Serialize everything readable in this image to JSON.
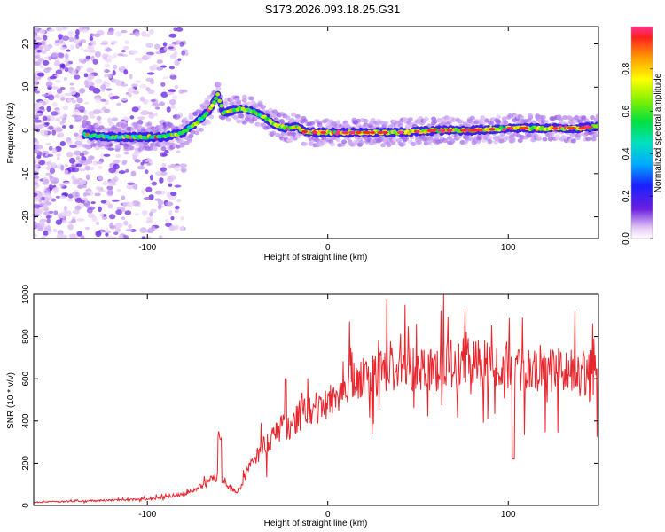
{
  "title": "S173.2026.093.18.25.G31",
  "chart_data": [
    {
      "type": "heatmap",
      "xlabel": "Height of straight line (km)",
      "ylabel": "Frequency (Hz)",
      "xlim": [
        -163,
        150
      ],
      "ylim": [
        -25,
        24
      ],
      "xticks": [
        -100,
        0,
        100
      ],
      "yticks": [
        -20,
        -10,
        0,
        10,
        20
      ],
      "colorbar": {
        "label": "Normalized spectral amplitude",
        "range": [
          0,
          1
        ],
        "ticks": [
          "0.0",
          "0.2",
          "0.4",
          "0.6",
          "0.8"
        ]
      },
      "ridge": {
        "x": [
          -135,
          -120,
          -100,
          -90,
          -80,
          -72,
          -65,
          -61,
          -58,
          -50,
          -42,
          -35,
          -28,
          -22,
          -18,
          -12,
          -5,
          0,
          20,
          40,
          60,
          80,
          100,
          120,
          140,
          150
        ],
        "y": [
          -1,
          -1.5,
          -1.5,
          -1.5,
          -0.5,
          2,
          5,
          8.5,
          4,
          5,
          4.5,
          3,
          1,
          0.5,
          1,
          -0.5,
          -0.5,
          -0.5,
          -0.5,
          -0.5,
          0,
          0,
          0.5,
          0.5,
          0.5,
          1
        ]
      },
      "grid": false
    },
    {
      "type": "line",
      "xlabel": "Height of straight line (km)",
      "ylabel": "SNR (10 * v/v)",
      "xlim": [
        -163,
        150
      ],
      "ylim": [
        0,
        1000
      ],
      "xticks": [
        -100,
        0,
        100
      ],
      "yticks": [
        0,
        200,
        400,
        600,
        800,
        1000
      ],
      "color": "#e8262d",
      "series": [
        {
          "x": [
            -163,
            -140,
            -120,
            -100,
            -90,
            -80,
            -70,
            -65,
            -60,
            -55,
            -50,
            -45,
            -40,
            -35,
            -30,
            -25,
            -20,
            -15,
            -10,
            -5,
            0,
            5,
            10,
            20,
            30,
            40,
            50,
            60,
            70,
            80,
            90,
            100,
            110,
            120,
            130,
            140,
            150
          ],
          "y": [
            15,
            20,
            25,
            30,
            40,
            55,
            90,
            120,
            140,
            90,
            60,
            150,
            230,
            290,
            330,
            360,
            390,
            420,
            440,
            460,
            490,
            530,
            560,
            600,
            640,
            650,
            660,
            660,
            670,
            680,
            670,
            660,
            650,
            650,
            640,
            620,
            630
          ]
        }
      ],
      "grid": false
    }
  ]
}
